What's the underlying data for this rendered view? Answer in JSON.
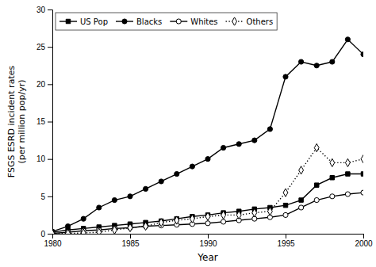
{
  "chart_data": {
    "type": "line",
    "x": [
      1980,
      1981,
      1982,
      1983,
      1984,
      1985,
      1986,
      1987,
      1988,
      1989,
      1990,
      1991,
      1992,
      1993,
      1994,
      1995,
      1996,
      1997,
      1998,
      1999,
      2000
    ],
    "series": [
      {
        "name": "US Pop",
        "color": "#000000",
        "marker": "square",
        "line_style": "solid",
        "values": [
          0.2,
          0.5,
          0.7,
          0.9,
          1.1,
          1.3,
          1.5,
          1.7,
          2.0,
          2.3,
          2.5,
          2.8,
          3.0,
          3.3,
          3.5,
          3.8,
          4.5,
          6.5,
          7.5,
          8.0,
          8.0
        ]
      },
      {
        "name": "Blacks",
        "color": "#000000",
        "marker": "circle",
        "line_style": "solid",
        "values": [
          0.3,
          1.0,
          2.0,
          3.5,
          4.5,
          5.0,
          6.0,
          7.0,
          8.0,
          9.0,
          10.0,
          11.5,
          12.0,
          12.5,
          14.0,
          21.0,
          23.0,
          22.5,
          23.0,
          26.0,
          24.0
        ]
      },
      {
        "name": "Whites",
        "color": "#000000",
        "marker": "open-circle",
        "line_style": "solid",
        "values": [
          0.05,
          0.2,
          0.4,
          0.5,
          0.7,
          0.8,
          1.0,
          1.1,
          1.2,
          1.3,
          1.4,
          1.6,
          1.8,
          2.0,
          2.2,
          2.5,
          3.5,
          4.5,
          5.0,
          5.3,
          5.5
        ]
      },
      {
        "name": "Others",
        "color": "#000000",
        "marker": "open-diamond",
        "line_style": "dotted",
        "values": [
          0.0,
          0.05,
          0.1,
          0.2,
          0.5,
          0.8,
          1.0,
          1.5,
          1.8,
          2.0,
          2.3,
          2.5,
          2.5,
          2.8,
          3.0,
          5.5,
          8.5,
          11.5,
          9.5,
          9.5,
          10.0
        ]
      }
    ],
    "xlabel": "Year",
    "ylabel": [
      "FSGS ESRD  incident rates",
      "(per million pop/yr)"
    ],
    "xlim": [
      1980,
      2000
    ],
    "ylim": [
      0,
      30
    ],
    "xticks": [
      1980,
      1985,
      1990,
      1995,
      2000
    ],
    "yticks": [
      0,
      5,
      10,
      15,
      20,
      25,
      30
    ],
    "grid": false,
    "legend": "upper left"
  }
}
